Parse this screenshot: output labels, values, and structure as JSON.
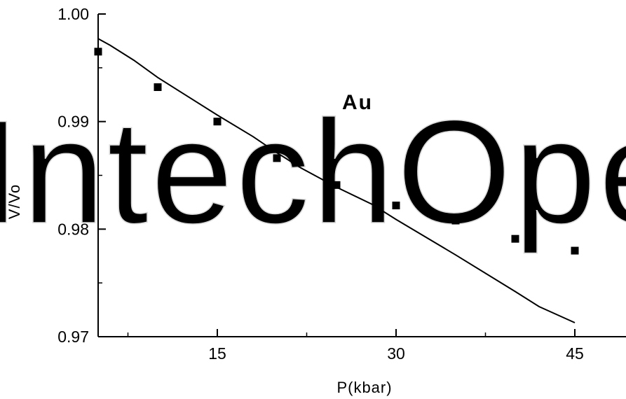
{
  "chart_data": {
    "type": "scatter",
    "title": "",
    "xlabel": "P(kbar)",
    "ylabel": "V/Vo",
    "xlim": [
      5,
      50
    ],
    "ylim": [
      0.97,
      1.0
    ],
    "xticks": [
      15,
      30,
      45
    ],
    "xtick_labels": [
      "15",
      "30",
      "45"
    ],
    "yticks": [
      0.97,
      0.98,
      0.99,
      1.0
    ],
    "ytick_labels": [
      "0.97",
      "0.98",
      "0.99",
      "1.00"
    ],
    "annotation": "Au",
    "grid": false,
    "legend": "none",
    "watermark": "IntechOpen",
    "series": [
      {
        "kind": "points",
        "marker": "square",
        "x": [
          5,
          10,
          15,
          20,
          25,
          30,
          35,
          40,
          45
        ],
        "y": [
          0.9965,
          0.9932,
          0.99,
          0.9866,
          0.9841,
          0.9822,
          0.9808,
          0.9791,
          0.978
        ]
      },
      {
        "kind": "line",
        "x": [
          5,
          6,
          8,
          10,
          12,
          15,
          18,
          20,
          22,
          25,
          28,
          30,
          35,
          40,
          42,
          45
        ],
        "y": [
          0.9977,
          0.9971,
          0.9957,
          0.9941,
          0.9927,
          0.9906,
          0.9886,
          0.9871,
          0.9857,
          0.9839,
          0.9823,
          0.9809,
          0.9776,
          0.9742,
          0.9728,
          0.9713
        ]
      }
    ]
  }
}
